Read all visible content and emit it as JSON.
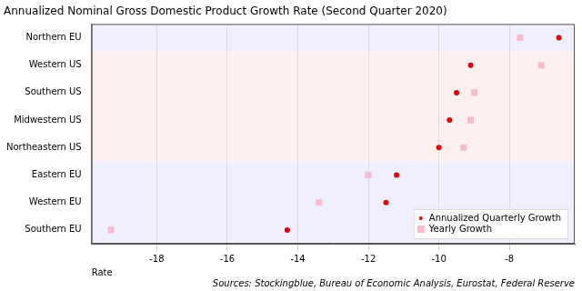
{
  "chart_data": {
    "type": "scatter",
    "title": "Annualized Nominal Gross Domestic Product Growth Rate (Second Quarter 2020)",
    "x_label": "Rate",
    "annotations": [
      "Sources: Stockingblue, Bureau of Economic Analysis, Eurostat, Federal Reserve"
    ],
    "categories": [
      "Northern EU",
      "Western US",
      "Southern US",
      "Midwestern US",
      "Northeastern US",
      "Eastern EU",
      "Western EU",
      "Southern EU"
    ],
    "series": [
      {
        "name": "Annualized Quarterly Growth",
        "color": "#dd0000",
        "marker": "circle",
        "values": [
          -6.6,
          -9.1,
          -9.5,
          -9.7,
          -10.0,
          -11.2,
          -11.5,
          -14.3
        ]
      },
      {
        "name": "Yearly Growth",
        "color": "#f5bccb",
        "marker": "square",
        "values": [
          -7.7,
          -7.1,
          -9.0,
          -9.1,
          -9.3,
          -12.0,
          -13.4,
          -19.3
        ]
      }
    ],
    "xlim": [
      -19.85,
      -6.15
    ],
    "xticks": [
      -18,
      -16,
      -14,
      -12,
      -10,
      -8
    ],
    "grid": true,
    "legend": "lower right"
  }
}
